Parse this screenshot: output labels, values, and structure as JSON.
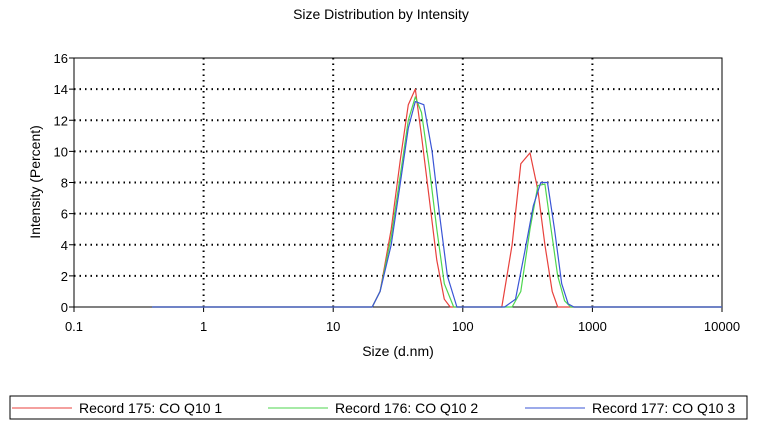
{
  "chart_data": {
    "type": "line",
    "title": "Size Distribution by Intensity",
    "xlabel": "Size (d.nm)",
    "ylabel": "Intensity (Percent)",
    "xscale": "log",
    "xlim": [
      0.1,
      10000
    ],
    "ylim": [
      0,
      16
    ],
    "x_ticks": [
      "0.1",
      "1",
      "10",
      "100",
      "1000",
      "10000"
    ],
    "y_ticks": [
      "0",
      "2",
      "4",
      "6",
      "8",
      "10",
      "12",
      "14",
      "16"
    ],
    "grid": "dotted",
    "legend_position": "bottom",
    "series": [
      {
        "name": "Record 175: CO Q10 1",
        "color": "#e8413c",
        "points": [
          [
            0.4,
            0
          ],
          [
            5,
            0
          ],
          [
            20,
            0
          ],
          [
            23,
            1
          ],
          [
            28,
            5
          ],
          [
            33,
            9.5
          ],
          [
            38,
            13
          ],
          [
            43,
            14
          ],
          [
            48,
            11
          ],
          [
            55,
            7
          ],
          [
            63,
            3
          ],
          [
            72,
            0.5
          ],
          [
            80,
            0
          ],
          [
            200,
            0
          ],
          [
            240,
            4
          ],
          [
            280,
            9.2
          ],
          [
            330,
            9.9
          ],
          [
            380,
            7.5
          ],
          [
            430,
            4
          ],
          [
            490,
            1
          ],
          [
            540,
            0
          ],
          [
            10000,
            0
          ]
        ]
      },
      {
        "name": "Record 176: CO Q10 2",
        "color": "#4ed64e",
        "points": [
          [
            0.4,
            0
          ],
          [
            5,
            0
          ],
          [
            20,
            0
          ],
          [
            23,
            1
          ],
          [
            28,
            4.5
          ],
          [
            33,
            8.5
          ],
          [
            38,
            12
          ],
          [
            43,
            13.5
          ],
          [
            48,
            12.5
          ],
          [
            55,
            9
          ],
          [
            63,
            5
          ],
          [
            72,
            1.5
          ],
          [
            85,
            0
          ],
          [
            240,
            0
          ],
          [
            280,
            1
          ],
          [
            330,
            5
          ],
          [
            380,
            7.8
          ],
          [
            430,
            7.9
          ],
          [
            480,
            5
          ],
          [
            540,
            2
          ],
          [
            610,
            0.4
          ],
          [
            680,
            0
          ],
          [
            10000,
            0
          ]
        ]
      },
      {
        "name": "Record 177: CO Q10 3",
        "color": "#3a55d6",
        "points": [
          [
            0.4,
            0
          ],
          [
            5,
            0
          ],
          [
            20,
            0
          ],
          [
            23,
            1
          ],
          [
            28,
            4
          ],
          [
            33,
            8
          ],
          [
            38,
            11.5
          ],
          [
            43,
            13.2
          ],
          [
            50,
            13
          ],
          [
            58,
            10
          ],
          [
            66,
            6
          ],
          [
            76,
            2
          ],
          [
            90,
            0
          ],
          [
            210,
            0
          ],
          [
            255,
            0.5
          ],
          [
            300,
            3.5
          ],
          [
            350,
            6.5
          ],
          [
            400,
            8
          ],
          [
            450,
            8
          ],
          [
            510,
            5
          ],
          [
            580,
            1.5
          ],
          [
            650,
            0.2
          ],
          [
            720,
            0
          ],
          [
            10000,
            0
          ]
        ]
      }
    ]
  }
}
